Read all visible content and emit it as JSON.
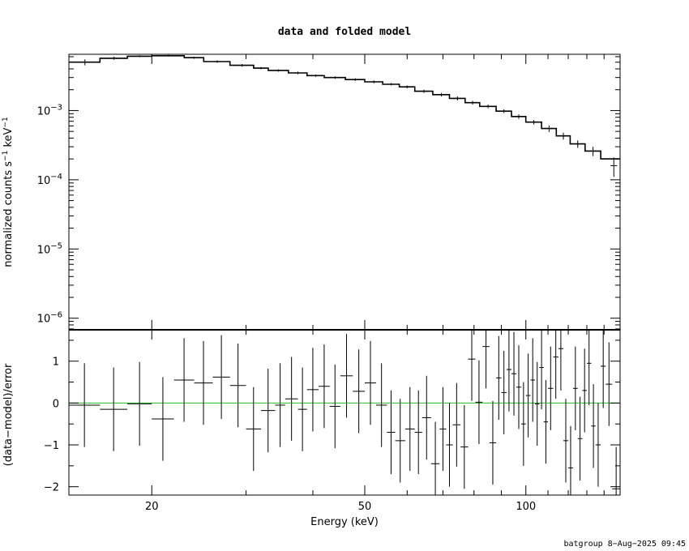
{
  "chart_data": [
    {
      "type": "step-line",
      "panel": "top",
      "title": "data and folded model",
      "ylabel": "normalized counts s^-1 keV^-1",
      "xscale": "log",
      "yscale": "log",
      "xlim": [
        14,
        150
      ],
      "ylim": [
        6.8e-07,
        0.0065
      ],
      "ytick_labels": [
        {
          "value": 0.001,
          "base": "10",
          "exp": "−3"
        },
        {
          "value": 0.0001,
          "base": "10",
          "exp": "−4"
        },
        {
          "value": 1e-05,
          "base": "10",
          "exp": "−5"
        },
        {
          "value": 1e-06,
          "base": "10",
          "exp": "−6"
        }
      ],
      "series": [
        {
          "kind": "model-step",
          "bins": [
            [
              14.0,
              16.0,
              0.005
            ],
            [
              16.0,
              18.0,
              0.0057
            ],
            [
              18.0,
              20.0,
              0.0061
            ],
            [
              20.0,
              23.0,
              0.0062
            ],
            [
              23.0,
              25.0,
              0.0058
            ],
            [
              25.0,
              28.0,
              0.0051
            ],
            [
              28.0,
              31.0,
              0.0045
            ],
            [
              31.0,
              33.0,
              0.0041
            ],
            [
              33.0,
              36.0,
              0.0038
            ],
            [
              36.0,
              39.0,
              0.0035
            ],
            [
              39.0,
              42.0,
              0.0032
            ],
            [
              42.0,
              46.0,
              0.003
            ],
            [
              46.0,
              50.0,
              0.0028
            ],
            [
              50.0,
              54.0,
              0.0026
            ],
            [
              54.0,
              58.0,
              0.0024
            ],
            [
              58.0,
              62.0,
              0.0022
            ],
            [
              62.0,
              67.0,
              0.0019
            ],
            [
              67.0,
              72.0,
              0.0017
            ],
            [
              72.0,
              77.0,
              0.0015
            ],
            [
              77.0,
              82.0,
              0.0013
            ],
            [
              82.0,
              88.0,
              0.00115
            ],
            [
              88.0,
              94.0,
              0.00098
            ],
            [
              94.0,
              100.0,
              0.00082
            ],
            [
              100.0,
              107.0,
              0.00068
            ],
            [
              107.0,
              114.0,
              0.00055
            ],
            [
              114.0,
              121.0,
              0.00043
            ],
            [
              121.0,
              129.0,
              0.00033
            ],
            [
              129.0,
              138.0,
              0.00026
            ],
            [
              138.0,
              150.0,
              0.0002
            ]
          ]
        },
        {
          "kind": "data",
          "points": [
            [
              15.0,
              0.005,
              0.0005
            ],
            [
              17.0,
              0.0057,
              0.0003
            ],
            [
              19.0,
              0.0061,
              0.0002
            ],
            [
              21.5,
              0.0062,
              0.0002
            ],
            [
              24.0,
              0.0058,
              0.0002
            ],
            [
              26.5,
              0.0051,
              0.0002
            ],
            [
              29.5,
              0.0045,
              0.0002
            ],
            [
              32.0,
              0.0041,
              0.00015
            ],
            [
              34.5,
              0.0038,
              0.00015
            ],
            [
              37.5,
              0.0035,
              0.00015
            ],
            [
              40.5,
              0.0032,
              0.00012
            ],
            [
              44.0,
              0.003,
              0.00012
            ],
            [
              48.0,
              0.0028,
              0.00012
            ],
            [
              52.0,
              0.0026,
              0.00012
            ],
            [
              56.0,
              0.0024,
              0.0001
            ],
            [
              60.0,
              0.0022,
              0.0001
            ],
            [
              64.5,
              0.0019,
              0.0001
            ],
            [
              69.5,
              0.0017,
              0.0001
            ],
            [
              74.5,
              0.0015,
              0.0001
            ],
            [
              79.5,
              0.0013,
              8e-05
            ],
            [
              85.0,
              0.00115,
              7e-05
            ],
            [
              91.0,
              0.00098,
              6e-05
            ],
            [
              97.0,
              0.00082,
              6e-05
            ],
            [
              103.5,
              0.00068,
              5e-05
            ],
            [
              110.5,
              0.00055,
              6e-05
            ],
            [
              117.5,
              0.00043,
              5e-05
            ],
            [
              125.0,
              0.00033,
              4e-05
            ],
            [
              133.5,
              0.00026,
              4e-05
            ],
            [
              146.0,
              0.00016,
              5e-05
            ]
          ]
        }
      ]
    },
    {
      "type": "errorbar",
      "panel": "bottom",
      "xlabel": "Energy (keV)",
      "ylabel": "(data−model)/error",
      "xscale": "log",
      "xlim": [
        14,
        150
      ],
      "ylim": [
        -2.2,
        1.75
      ],
      "xtick_labels": [
        {
          "value": 20,
          "label": "20"
        },
        {
          "value": 50,
          "label": "50"
        },
        {
          "value": 100,
          "label": "100"
        }
      ],
      "ytick_labels": [
        {
          "value": 1,
          "label": "1"
        },
        {
          "value": 0,
          "label": "0"
        },
        {
          "value": -1,
          "label": "−1"
        },
        {
          "value": -2,
          "label": "−2"
        }
      ],
      "zero_line_color": "#22bb22",
      "points": [
        [
          14.0,
          16.0,
          -0.05
        ],
        [
          16.0,
          18.0,
          -0.15
        ],
        [
          18.0,
          20.0,
          -0.02
        ],
        [
          20.0,
          22.0,
          -0.38
        ],
        [
          22.0,
          24.0,
          0.55
        ],
        [
          24.0,
          26.0,
          0.48
        ],
        [
          26.0,
          28.0,
          0.62
        ],
        [
          28.0,
          30.0,
          0.42
        ],
        [
          30.0,
          32.0,
          -0.62
        ],
        [
          32.0,
          34.0,
          -0.18
        ],
        [
          34.0,
          35.5,
          -0.05
        ],
        [
          35.5,
          37.5,
          0.1
        ],
        [
          37.5,
          39.0,
          -0.15
        ],
        [
          39.0,
          41.0,
          0.32
        ],
        [
          41.0,
          43.0,
          0.4
        ],
        [
          43.0,
          45.0,
          -0.08
        ],
        [
          45.0,
          47.5,
          0.65
        ],
        [
          47.5,
          50.0,
          0.28
        ],
        [
          50.0,
          52.5,
          0.48
        ],
        [
          52.5,
          55.0,
          -0.05
        ],
        [
          55.0,
          57.0,
          -0.7
        ],
        [
          57.0,
          59.5,
          -0.9
        ],
        [
          59.5,
          62.0,
          -0.62
        ],
        [
          62.0,
          64.0,
          -0.7
        ],
        [
          64.0,
          66.5,
          -0.35
        ],
        [
          66.5,
          69.0,
          -1.45
        ],
        [
          69.0,
          71.0,
          -0.62
        ],
        [
          71.0,
          73.0,
          -1.0
        ],
        [
          73.0,
          75.5,
          -0.52
        ],
        [
          75.5,
          78.0,
          -1.05
        ],
        [
          78.0,
          80.5,
          1.05
        ],
        [
          80.5,
          83.0,
          0.02
        ],
        [
          83.0,
          85.5,
          1.35
        ],
        [
          85.5,
          88.0,
          -0.95
        ],
        [
          88.0,
          90.0,
          0.6
        ],
        [
          90.0,
          92.0,
          0.25
        ],
        [
          92.0,
          94.0,
          0.8
        ],
        [
          94.0,
          96.0,
          0.7
        ],
        [
          96.0,
          98.0,
          0.38
        ],
        [
          98.0,
          100.0,
          -0.5
        ],
        [
          100.0,
          102.0,
          0.18
        ],
        [
          102.0,
          104.0,
          0.55
        ],
        [
          104.0,
          106.0,
          -0.02
        ],
        [
          106.0,
          108.0,
          0.85
        ],
        [
          108.0,
          110.0,
          -0.45
        ],
        [
          110.0,
          112.5,
          0.35
        ],
        [
          112.5,
          115.0,
          1.1
        ],
        [
          115.0,
          117.5,
          1.3
        ],
        [
          117.5,
          120.0,
          -0.9
        ],
        [
          120.0,
          122.5,
          -1.55
        ],
        [
          122.5,
          125.0,
          0.35
        ],
        [
          125.0,
          127.5,
          -0.85
        ],
        [
          127.5,
          130.0,
          0.3
        ],
        [
          130.0,
          132.5,
          0.95
        ],
        [
          132.5,
          135.0,
          -0.55
        ],
        [
          135.0,
          138.0,
          -1.0
        ],
        [
          138.0,
          141.0,
          0.88
        ],
        [
          141.0,
          145.0,
          0.45
        ],
        [
          145.0,
          150.0,
          -2.05
        ]
      ]
    }
  ],
  "footer": "batgroup  8−Aug−2025 09:45"
}
